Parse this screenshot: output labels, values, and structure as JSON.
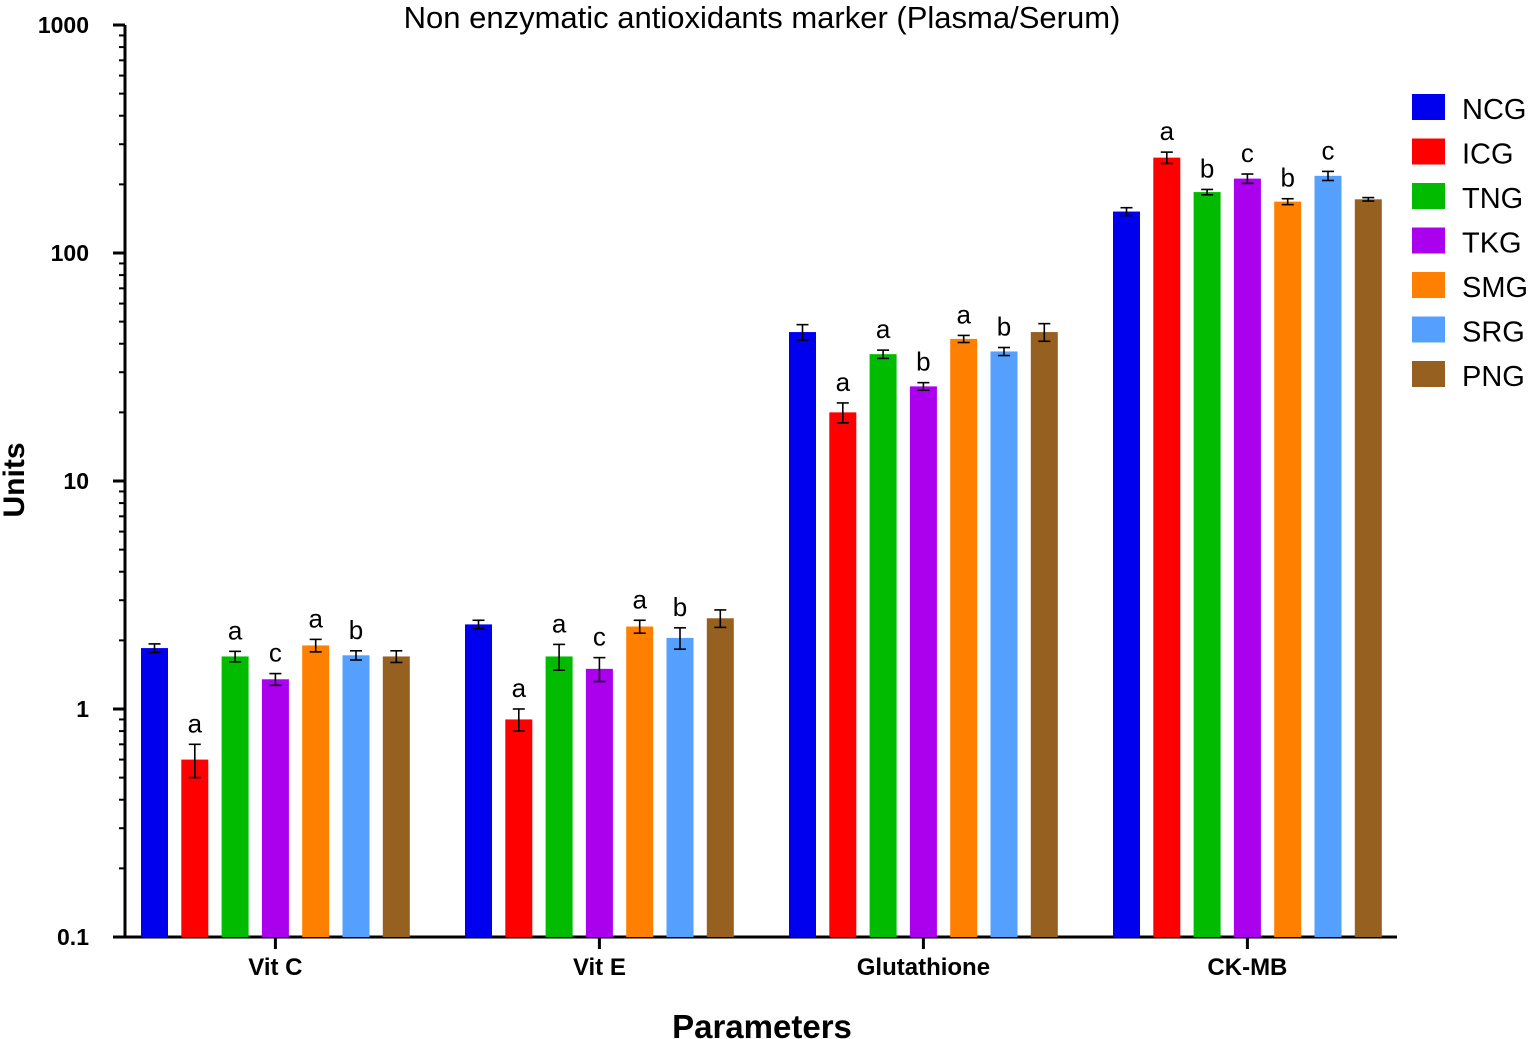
{
  "chart_data": {
    "type": "bar",
    "title": "Non enzymatic antioxidants marker (Plasma/Serum)",
    "xlabel": "Parameters",
    "ylabel": "Units",
    "yscale": "log",
    "ylim": [
      0.1,
      1000
    ],
    "yticks": [
      "0.1",
      "1",
      "10",
      "100",
      "1000"
    ],
    "legend_position": "right",
    "categories": [
      "Vit C",
      "Vit E",
      "Glutathione",
      "CK-MB"
    ],
    "series": [
      {
        "name": "NCG",
        "color": "#0000ee",
        "values": [
          1.85,
          2.35,
          45,
          152
        ],
        "errors": [
          0.08,
          0.1,
          3.5,
          6
        ],
        "labels": [
          "",
          "",
          "",
          ""
        ]
      },
      {
        "name": "ICG",
        "color": "#ff0000",
        "values": [
          0.6,
          0.9,
          20,
          262
        ],
        "errors": [
          0.1,
          0.1,
          2,
          15
        ],
        "labels": [
          "a",
          "a",
          "a",
          "a"
        ]
      },
      {
        "name": "TNG",
        "color": "#00bb00",
        "values": [
          1.7,
          1.7,
          36,
          185
        ],
        "errors": [
          0.09,
          0.22,
          1.5,
          5
        ],
        "labels": [
          "a",
          "a",
          "a",
          "b"
        ]
      },
      {
        "name": "TKG",
        "color": "#aa00ee",
        "values": [
          1.35,
          1.5,
          26,
          212
        ],
        "errors": [
          0.08,
          0.18,
          1,
          10
        ],
        "labels": [
          "c",
          "c",
          "b",
          "c"
        ]
      },
      {
        "name": "SMG",
        "color": "#ff8000",
        "values": [
          1.9,
          2.3,
          42,
          168
        ],
        "errors": [
          0.12,
          0.15,
          1.5,
          5
        ],
        "labels": [
          "a",
          "a",
          "a",
          "b"
        ]
      },
      {
        "name": "SRG",
        "color": "#55a0ff",
        "values": [
          1.72,
          2.05,
          37,
          218
        ],
        "errors": [
          0.08,
          0.22,
          1.5,
          10
        ],
        "labels": [
          "b",
          "b",
          "b",
          "c"
        ]
      },
      {
        "name": "PNG",
        "color": "#956020",
        "values": [
          1.7,
          2.5,
          45,
          172
        ],
        "errors": [
          0.1,
          0.22,
          4,
          3
        ],
        "labels": [
          "",
          "",
          "",
          ""
        ]
      }
    ]
  }
}
